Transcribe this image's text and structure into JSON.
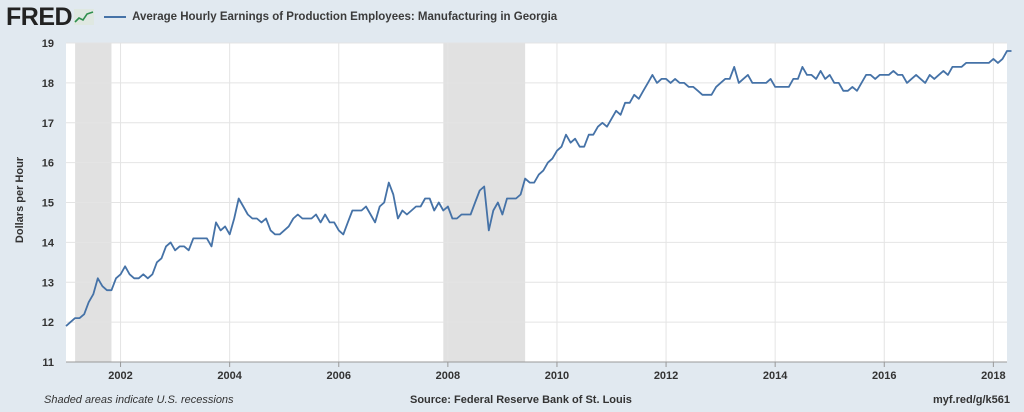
{
  "header": {
    "logo_text": "FRED",
    "logo_icon": "sparkline-icon"
  },
  "footer": {
    "note": "Shaded areas indicate U.S. recessions",
    "source": "Source: Federal Reserve Bank of St. Louis",
    "url": "myf.red/g/k561"
  },
  "colors": {
    "line": "#4572a7",
    "recession": "#e1e1e1",
    "background": "#e1e9f0",
    "plot": "#ffffff"
  },
  "chart_data": {
    "type": "line",
    "title": "",
    "xlabel": "",
    "ylabel": "Dollars per Hour",
    "ylim": [
      11,
      19
    ],
    "xlim": [
      "2001-01",
      "2018-04"
    ],
    "yticks": [
      11,
      12,
      13,
      14,
      15,
      16,
      17,
      18,
      19
    ],
    "xticks": [
      "2002",
      "2004",
      "2006",
      "2008",
      "2010",
      "2012",
      "2014",
      "2016",
      "2018"
    ],
    "grid": true,
    "legend": "top-left",
    "recessions": [
      [
        "2001-03",
        "2001-11"
      ],
      [
        "2007-12",
        "2009-06"
      ]
    ],
    "series": [
      {
        "name": "Average Hourly Earnings of Production Employees: Manufacturing in Georgia",
        "start": "2001-01",
        "frequency": "monthly",
        "values": [
          11.9,
          12.0,
          12.1,
          12.1,
          12.2,
          12.5,
          12.7,
          13.1,
          12.9,
          12.8,
          12.8,
          13.1,
          13.2,
          13.4,
          13.2,
          13.1,
          13.1,
          13.2,
          13.1,
          13.2,
          13.5,
          13.6,
          13.9,
          14.0,
          13.8,
          13.9,
          13.9,
          13.8,
          14.1,
          14.1,
          14.1,
          14.1,
          13.9,
          14.5,
          14.3,
          14.4,
          14.2,
          14.6,
          15.1,
          14.9,
          14.7,
          14.6,
          14.6,
          14.5,
          14.6,
          14.3,
          14.2,
          14.2,
          14.3,
          14.4,
          14.6,
          14.7,
          14.6,
          14.6,
          14.6,
          14.7,
          14.5,
          14.7,
          14.5,
          14.5,
          14.3,
          14.2,
          14.5,
          14.8,
          14.8,
          14.8,
          14.9,
          14.7,
          14.5,
          14.9,
          15.0,
          15.5,
          15.2,
          14.6,
          14.8,
          14.7,
          14.8,
          14.9,
          14.9,
          15.1,
          15.1,
          14.8,
          15.0,
          14.8,
          14.9,
          14.6,
          14.6,
          14.7,
          14.7,
          14.7,
          15.0,
          15.3,
          15.4,
          14.3,
          14.8,
          15.0,
          14.7,
          15.1,
          15.1,
          15.1,
          15.2,
          15.6,
          15.5,
          15.5,
          15.7,
          15.8,
          16.0,
          16.1,
          16.3,
          16.4,
          16.7,
          16.5,
          16.6,
          16.4,
          16.4,
          16.7,
          16.7,
          16.9,
          17.0,
          16.9,
          17.1,
          17.3,
          17.2,
          17.5,
          17.5,
          17.7,
          17.6,
          17.8,
          18.0,
          18.2,
          18.0,
          18.1,
          18.1,
          18.0,
          18.1,
          18.0,
          18.0,
          17.9,
          17.9,
          17.8,
          17.7,
          17.7,
          17.7,
          17.9,
          18.0,
          18.1,
          18.1,
          18.4,
          18.0,
          18.1,
          18.2,
          18.0,
          18.0,
          18.0,
          18.0,
          18.1,
          17.9,
          17.9,
          17.9,
          17.9,
          18.1,
          18.1,
          18.4,
          18.2,
          18.2,
          18.1,
          18.3,
          18.1,
          18.2,
          18.0,
          18.0,
          17.8,
          17.8,
          17.9,
          17.8,
          18.0,
          18.2,
          18.2,
          18.1,
          18.2,
          18.2,
          18.2,
          18.3,
          18.2,
          18.2,
          18.0,
          18.1,
          18.2,
          18.1,
          18.0,
          18.2,
          18.1,
          18.2,
          18.3,
          18.2,
          18.4,
          18.4,
          18.4,
          18.5,
          18.5,
          18.5,
          18.5,
          18.5,
          18.5,
          18.6,
          18.5,
          18.6,
          18.8,
          18.8
        ]
      }
    ]
  }
}
